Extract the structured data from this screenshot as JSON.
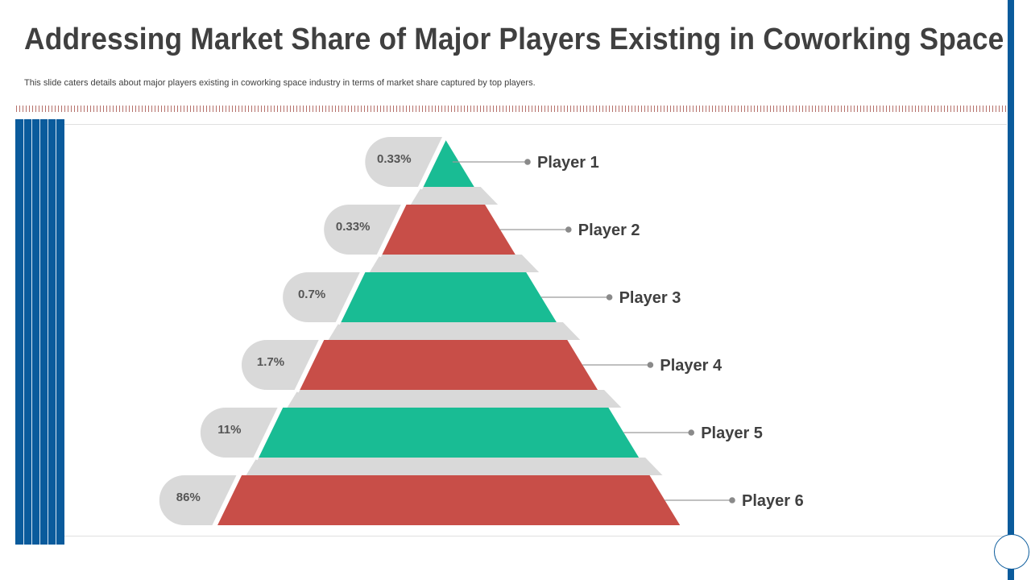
{
  "slide": {
    "title": "Addressing Market Share of Major Players Existing in Coworking Space",
    "subtitle": "This slide caters details about major players existing in coworking space industry in terms of market share captured by top players."
  },
  "colors": {
    "green": "#19bc94",
    "red": "#c84e48",
    "gray_band": "#d9d9d9",
    "pill": "#d9d9d9",
    "accent_blue": "#0a5b9c",
    "text": "#404040"
  },
  "pyramid": {
    "levels": [
      {
        "label": "Player 1",
        "value": "0.33%",
        "color": "green"
      },
      {
        "label": "Player 2",
        "value": "0.33%",
        "color": "red"
      },
      {
        "label": "Player 3",
        "value": "0.7%",
        "color": "green"
      },
      {
        "label": "Player 4",
        "value": "1.7%",
        "color": "red"
      },
      {
        "label": "Player 5",
        "value": "11%",
        "color": "green"
      },
      {
        "label": "Player 6",
        "value": "86%",
        "color": "red"
      }
    ]
  }
}
